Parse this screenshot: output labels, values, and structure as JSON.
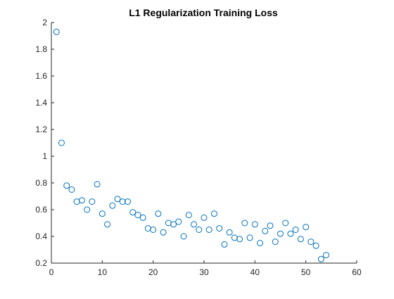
{
  "chart_data": {
    "type": "scatter",
    "title": "L1 Regularization Training Loss",
    "xlabel": "",
    "ylabel": "",
    "xlim": [
      0,
      60
    ],
    "ylim": [
      0.2,
      2
    ],
    "xticks": [
      0,
      10,
      20,
      30,
      40,
      50,
      60
    ],
    "yticks": [
      0.2,
      0.4,
      0.6,
      0.8,
      1,
      1.2,
      1.4,
      1.6,
      1.8,
      2
    ],
    "xtick_labels": [
      "0",
      "10",
      "20",
      "30",
      "40",
      "50",
      "60"
    ],
    "ytick_labels": [
      "0.2",
      "0.4",
      "0.6",
      "0.8",
      "1",
      "1.2",
      "1.4",
      "1.6",
      "1.8",
      "2"
    ],
    "grid": false,
    "marker": "circle-open",
    "color": "#0072BD",
    "series": [
      {
        "x": [
          1,
          2,
          3,
          4,
          5,
          6,
          7,
          8,
          9,
          10,
          11,
          12,
          13,
          14,
          15,
          16,
          17,
          18,
          19,
          20,
          21,
          22,
          23,
          24,
          25,
          26,
          27,
          28,
          29,
          30,
          31,
          32,
          33,
          34,
          35,
          36,
          37,
          38,
          39,
          40,
          41,
          42,
          43,
          44,
          45,
          46,
          47,
          48,
          49,
          50,
          51,
          52,
          53,
          54
        ],
        "y": [
          1.93,
          1.1,
          0.78,
          0.75,
          0.66,
          0.67,
          0.6,
          0.66,
          0.79,
          0.57,
          0.49,
          0.63,
          0.68,
          0.66,
          0.66,
          0.58,
          0.56,
          0.54,
          0.46,
          0.45,
          0.57,
          0.43,
          0.5,
          0.49,
          0.51,
          0.4,
          0.56,
          0.49,
          0.45,
          0.54,
          0.45,
          0.57,
          0.46,
          0.34,
          0.43,
          0.39,
          0.38,
          0.5,
          0.39,
          0.49,
          0.35,
          0.44,
          0.48,
          0.36,
          0.42,
          0.5,
          0.42,
          0.45,
          0.38,
          0.47,
          0.36,
          0.33,
          0.23,
          0.26
        ]
      }
    ]
  }
}
